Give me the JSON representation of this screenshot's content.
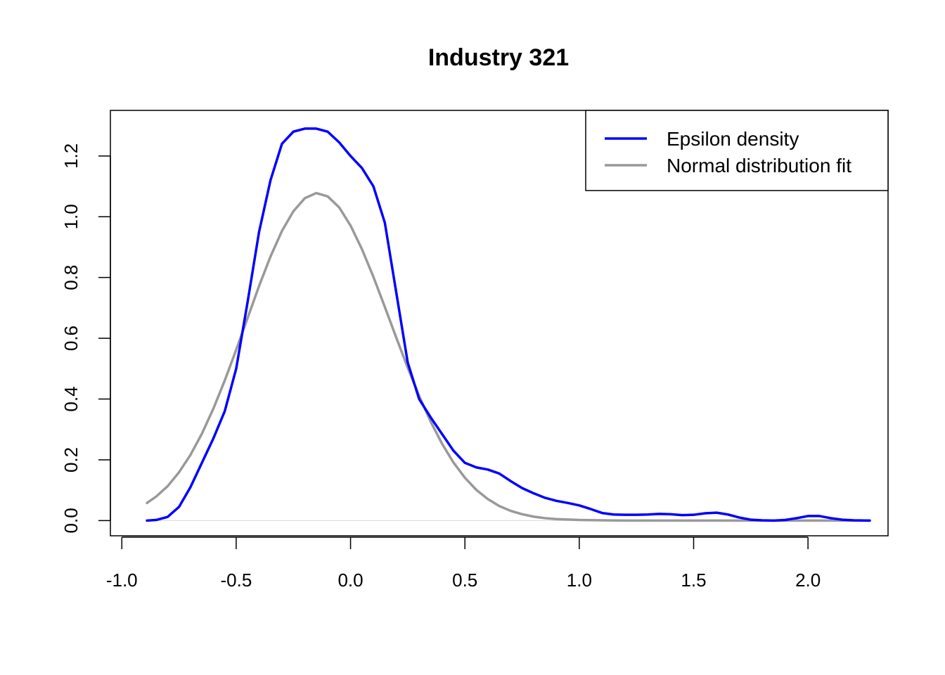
{
  "chart_data": {
    "type": "line",
    "title": "Industry 321",
    "xlabel": "",
    "ylabel": "",
    "xlim": [
      -1.05,
      2.35
    ],
    "ylim": [
      -0.05,
      1.35
    ],
    "x_ticks": [
      -1.0,
      -0.5,
      0.0,
      0.5,
      1.0,
      1.5,
      2.0
    ],
    "x_tick_labels": [
      "-1.0",
      "-0.5",
      "0.0",
      "0.5",
      "1.0",
      "1.5",
      "2.0"
    ],
    "y_ticks": [
      0.0,
      0.2,
      0.4,
      0.6,
      0.8,
      1.0,
      1.2
    ],
    "y_tick_labels": [
      "0.0",
      "0.2",
      "0.4",
      "0.6",
      "0.8",
      "1.0",
      "1.2"
    ],
    "grid": false,
    "legend_position": "top-right",
    "baseline": 0,
    "baseline_color": "#d9d9d9",
    "series": [
      {
        "name": "Epsilon density",
        "color": "#0000ff",
        "points": [
          [
            -0.89,
            0.0
          ],
          [
            -0.85,
            0.002
          ],
          [
            -0.8,
            0.012
          ],
          [
            -0.75,
            0.045
          ],
          [
            -0.7,
            0.11
          ],
          [
            -0.65,
            0.19
          ],
          [
            -0.6,
            0.27
          ],
          [
            -0.55,
            0.36
          ],
          [
            -0.5,
            0.5
          ],
          [
            -0.45,
            0.72
          ],
          [
            -0.4,
            0.95
          ],
          [
            -0.35,
            1.12
          ],
          [
            -0.3,
            1.24
          ],
          [
            -0.25,
            1.28
          ],
          [
            -0.2,
            1.29
          ],
          [
            -0.15,
            1.29
          ],
          [
            -0.1,
            1.28
          ],
          [
            -0.05,
            1.245
          ],
          [
            0.0,
            1.2
          ],
          [
            0.05,
            1.16
          ],
          [
            0.1,
            1.1
          ],
          [
            0.15,
            0.98
          ],
          [
            0.2,
            0.75
          ],
          [
            0.25,
            0.52
          ],
          [
            0.3,
            0.4
          ],
          [
            0.35,
            0.34
          ],
          [
            0.4,
            0.285
          ],
          [
            0.45,
            0.23
          ],
          [
            0.5,
            0.19
          ],
          [
            0.55,
            0.175
          ],
          [
            0.6,
            0.168
          ],
          [
            0.65,
            0.155
          ],
          [
            0.7,
            0.13
          ],
          [
            0.75,
            0.107
          ],
          [
            0.8,
            0.09
          ],
          [
            0.85,
            0.075
          ],
          [
            0.9,
            0.065
          ],
          [
            0.95,
            0.058
          ],
          [
            1.0,
            0.05
          ],
          [
            1.05,
            0.038
          ],
          [
            1.1,
            0.025
          ],
          [
            1.15,
            0.02
          ],
          [
            1.2,
            0.019
          ],
          [
            1.25,
            0.019
          ],
          [
            1.3,
            0.02
          ],
          [
            1.35,
            0.022
          ],
          [
            1.4,
            0.021
          ],
          [
            1.45,
            0.018
          ],
          [
            1.5,
            0.019
          ],
          [
            1.55,
            0.024
          ],
          [
            1.6,
            0.026
          ],
          [
            1.65,
            0.02
          ],
          [
            1.7,
            0.01
          ],
          [
            1.75,
            0.003
          ],
          [
            1.8,
            0.001
          ],
          [
            1.85,
            0.0
          ],
          [
            1.9,
            0.002
          ],
          [
            1.95,
            0.008
          ],
          [
            2.0,
            0.015
          ],
          [
            2.05,
            0.015
          ],
          [
            2.1,
            0.008
          ],
          [
            2.15,
            0.003
          ],
          [
            2.2,
            0.001
          ],
          [
            2.27,
            0.0
          ]
        ]
      },
      {
        "name": "Normal distribution fit",
        "color": "#999999",
        "points": [
          [
            -0.89,
            0.058
          ],
          [
            -0.85,
            0.079
          ],
          [
            -0.8,
            0.113
          ],
          [
            -0.75,
            0.159
          ],
          [
            -0.7,
            0.216
          ],
          [
            -0.65,
            0.286
          ],
          [
            -0.6,
            0.368
          ],
          [
            -0.55,
            0.461
          ],
          [
            -0.5,
            0.562
          ],
          [
            -0.45,
            0.667
          ],
          [
            -0.4,
            0.772
          ],
          [
            -0.35,
            0.869
          ],
          [
            -0.3,
            0.953
          ],
          [
            -0.25,
            1.018
          ],
          [
            -0.2,
            1.061
          ],
          [
            -0.15,
            1.078
          ],
          [
            -0.1,
            1.067
          ],
          [
            -0.05,
            1.031
          ],
          [
            0.0,
            0.971
          ],
          [
            0.05,
            0.893
          ],
          [
            0.1,
            0.802
          ],
          [
            0.15,
            0.703
          ],
          [
            0.2,
            0.602
          ],
          [
            0.25,
            0.503
          ],
          [
            0.3,
            0.41
          ],
          [
            0.35,
            0.326
          ],
          [
            0.4,
            0.253
          ],
          [
            0.45,
            0.191
          ],
          [
            0.5,
            0.141
          ],
          [
            0.55,
            0.101
          ],
          [
            0.6,
            0.071
          ],
          [
            0.65,
            0.048
          ],
          [
            0.7,
            0.032
          ],
          [
            0.75,
            0.021
          ],
          [
            0.8,
            0.013
          ],
          [
            0.85,
            0.008
          ],
          [
            0.9,
            0.005
          ],
          [
            1.0,
            0.002
          ],
          [
            1.1,
            0.001
          ],
          [
            1.2,
            0.0
          ],
          [
            1.5,
            0.0
          ],
          [
            1.8,
            0.0
          ],
          [
            2.27,
            0.0
          ]
        ]
      }
    ]
  }
}
